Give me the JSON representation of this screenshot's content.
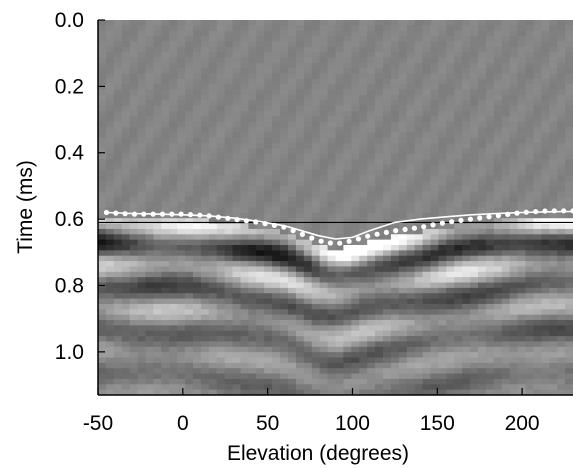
{
  "chart_data": {
    "type": "heatmap",
    "title": "",
    "xlabel": "Elevation (degrees)",
    "ylabel": "Time (ms)",
    "xlim": [
      -50,
      230
    ],
    "ylim": [
      0.0,
      1.13
    ],
    "y_inverted": true,
    "colormap": "grayscale",
    "x_ticks": [
      -50,
      0,
      50,
      100,
      150,
      200
    ],
    "y_ticks": [
      0.0,
      0.2,
      0.4,
      0.6,
      0.8,
      1.0
    ],
    "x_tick_labels": [
      "-50",
      "0",
      "50",
      "100",
      "150",
      "200"
    ],
    "y_tick_labels": [
      "0.0",
      "0.2",
      "0.4",
      "0.6",
      "0.8",
      "1.0"
    ],
    "reference_line": {
      "y": 0.61,
      "color": "#000000"
    },
    "series": [
      {
        "style": "white-dotted",
        "x": [
          -45,
          -30,
          -15,
          0,
          15,
          30,
          45,
          60,
          70,
          80,
          90,
          100,
          110,
          125,
          140,
          155,
          170,
          185,
          200,
          215,
          230
        ],
        "y": [
          0.58,
          0.585,
          0.585,
          0.585,
          0.59,
          0.6,
          0.61,
          0.625,
          0.645,
          0.665,
          0.675,
          0.665,
          0.65,
          0.635,
          0.625,
          0.61,
          0.6,
          0.59,
          0.58,
          0.575,
          0.575
        ]
      },
      {
        "style": "white-line",
        "x": [
          -45,
          -30,
          -15,
          0,
          15,
          30,
          45,
          60,
          70,
          80,
          90,
          100,
          110,
          125,
          140,
          155,
          170,
          185,
          200,
          215,
          230
        ],
        "y": [
          0.58,
          0.583,
          0.585,
          0.587,
          0.59,
          0.597,
          0.607,
          0.62,
          0.635,
          0.65,
          0.66,
          0.655,
          0.635,
          0.61,
          0.6,
          0.593,
          0.587,
          0.583,
          0.58,
          0.578,
          0.577
        ]
      }
    ]
  }
}
